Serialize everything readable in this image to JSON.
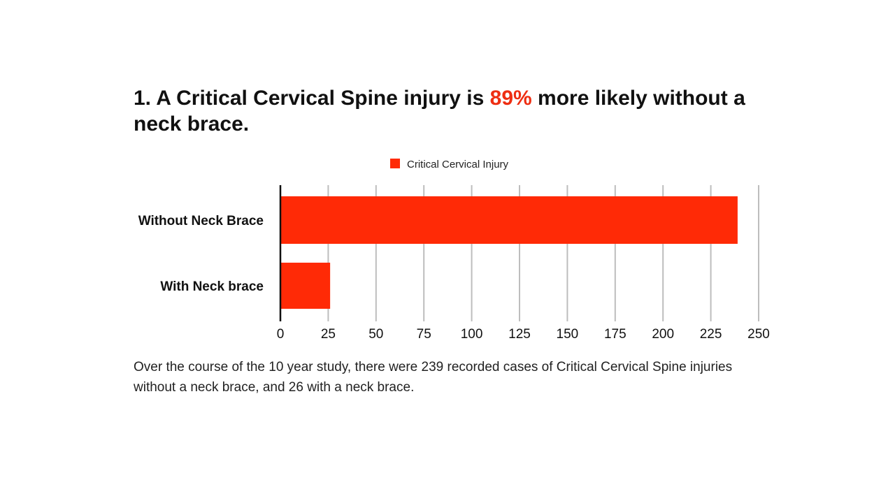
{
  "headline": {
    "prefix": "1. A Critical Cervical Spine injury is ",
    "highlight": "89%",
    "suffix": " more likely without a neck brace."
  },
  "caption": "Over the course of the 10 year study, there were 239 recorded cases of Critical Cervical Spine injuries without a neck brace, and 26 with a neck brace.",
  "colors": {
    "accent": "#ee2e12",
    "bar": "#ff2a06",
    "grid": "#bdbdbd"
  },
  "chart_data": {
    "type": "bar",
    "orientation": "horizontal",
    "categories": [
      "Without Neck Brace",
      "With Neck brace"
    ],
    "series": [
      {
        "name": "Critical Cervical Injury",
        "values": [
          239,
          26
        ]
      }
    ],
    "xlim": [
      0,
      250
    ],
    "xticks": [
      0,
      25,
      50,
      75,
      100,
      125,
      150,
      175,
      200,
      225,
      250
    ],
    "grid": true,
    "legend": "top-center"
  }
}
